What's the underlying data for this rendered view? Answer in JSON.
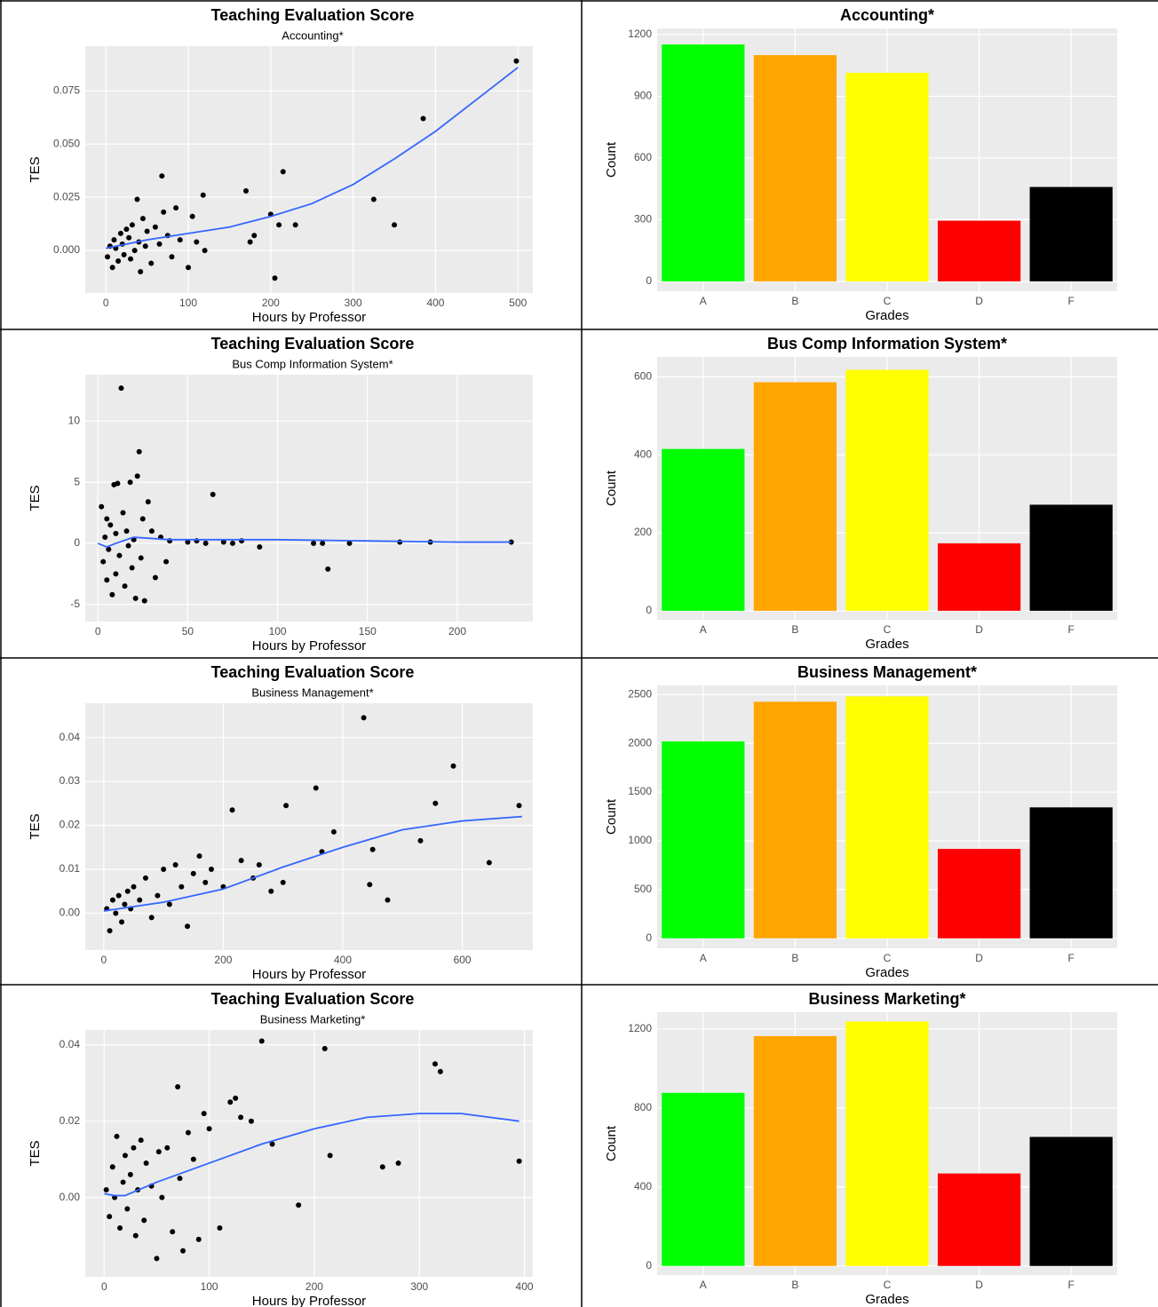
{
  "chart_data": [
    {
      "type": "scatter",
      "title": "Teaching Evaluation Score",
      "subtitle": "Accounting*",
      "x_label": "Hours by Professor",
      "y_label": "TES",
      "xlim": [
        -25,
        518
      ],
      "ylim": [
        -0.02,
        0.096
      ],
      "xticks": [
        0,
        100,
        200,
        300,
        400,
        500
      ],
      "yticks": [
        {
          "value": 0,
          "label": "0.000"
        },
        0.025,
        {
          "value": 0.05,
          "label": "0.050"
        },
        0.075
      ],
      "color": "#000000",
      "fit_color": "#3366ff",
      "x": [
        2,
        5,
        8,
        10,
        12,
        15,
        18,
        20,
        22,
        25,
        28,
        30,
        32,
        35,
        38,
        40,
        42,
        45,
        48,
        50,
        55,
        60,
        65,
        68,
        70,
        75,
        80,
        85,
        90,
        100,
        105,
        110,
        118,
        120,
        170,
        175,
        180,
        200,
        205,
        210,
        215,
        230,
        325,
        350,
        385,
        498
      ],
      "y": [
        -0.003,
        0.002,
        -0.008,
        0.005,
        0.001,
        -0.005,
        0.008,
        0.003,
        -0.002,
        0.01,
        0.006,
        -0.004,
        0.012,
        0.0,
        0.024,
        0.004,
        -0.01,
        0.015,
        0.002,
        0.009,
        -0.006,
        0.011,
        0.003,
        0.035,
        0.018,
        0.007,
        -0.003,
        0.02,
        0.005,
        -0.008,
        0.016,
        0.004,
        0.026,
        0.0,
        0.028,
        0.004,
        0.007,
        0.017,
        -0.013,
        0.012,
        0.037,
        0.012,
        0.024,
        0.012,
        0.062,
        0.089
      ],
      "fit": {
        "x": [
          0,
          50,
          100,
          150,
          200,
          250,
          300,
          350,
          400,
          450,
          500
        ],
        "y": [
          0.001,
          0.005,
          0.008,
          0.011,
          0.016,
          0.022,
          0.031,
          0.043,
          0.056,
          0.071,
          0.086
        ]
      }
    },
    {
      "type": "bar",
      "title": "Accounting*",
      "x_label": "Grades",
      "y_label": "Count",
      "categories": [
        "A",
        "B",
        "C",
        "D",
        "F"
      ],
      "values": [
        1152,
        1100,
        1014,
        295,
        459
      ],
      "colors": [
        "#00ff00",
        "#ffa500",
        "#ffff00",
        "#ff0000",
        "#000000"
      ],
      "ylim": [
        -48,
        1230
      ],
      "yticks": [
        0,
        300,
        600,
        900,
        1200
      ]
    },
    {
      "type": "scatter",
      "title": "Teaching Evaluation Score",
      "subtitle": "Bus Comp Information System*",
      "x_label": "Hours by Professor",
      "y_label": "TES",
      "xlim": [
        -7,
        242
      ],
      "ylim": [
        -6.4,
        13.8
      ],
      "xticks": [
        0,
        50,
        100,
        150,
        200
      ],
      "yticks": [
        -5,
        0,
        5,
        10
      ],
      "color": "#000000",
      "fit_color": "#3366ff",
      "x": [
        2,
        3,
        4,
        5,
        5,
        6,
        7,
        8,
        9,
        10,
        10,
        11,
        12,
        13,
        14,
        15,
        16,
        17,
        18,
        19,
        20,
        21,
        22,
        23,
        24,
        25,
        26,
        28,
        30,
        32,
        35,
        38,
        40,
        50,
        55,
        60,
        64,
        70,
        75,
        80,
        90,
        120,
        125,
        128,
        140,
        168,
        185,
        230
      ],
      "y": [
        3.0,
        -1.5,
        0.5,
        2.0,
        -3.0,
        -0.5,
        1.5,
        -4.2,
        4.8,
        -2.5,
        0.8,
        4.9,
        -1.0,
        12.7,
        2.5,
        -3.5,
        1.0,
        -0.2,
        5.0,
        -2.0,
        0.3,
        -4.5,
        5.5,
        7.5,
        -1.2,
        2.0,
        -4.7,
        3.4,
        1.0,
        -2.8,
        0.5,
        -1.5,
        0.2,
        0.1,
        0.2,
        0.0,
        4.0,
        0.1,
        0.0,
        0.2,
        -0.3,
        0.0,
        0.0,
        -2.1,
        0.0,
        0.1,
        0.1,
        0.1
      ],
      "fit": {
        "x": [
          0,
          5,
          10,
          20,
          40,
          70,
          100,
          150,
          200,
          230
        ],
        "y": [
          0.0,
          -0.3,
          0.0,
          0.5,
          0.3,
          0.3,
          0.3,
          0.2,
          0.1,
          0.1
        ]
      }
    },
    {
      "type": "bar",
      "title": "Bus Comp Information System*",
      "x_label": "Grades",
      "y_label": "Count",
      "categories": [
        "A",
        "B",
        "C",
        "D",
        "F"
      ],
      "values": [
        415,
        586,
        618,
        173,
        272
      ],
      "colors": [
        "#00ff00",
        "#ffa500",
        "#ffff00",
        "#ff0000",
        "#000000"
      ],
      "ylim": [
        -23,
        651
      ],
      "yticks": [
        0,
        200,
        400,
        600
      ]
    },
    {
      "type": "scatter",
      "title": "Teaching Evaluation Score",
      "subtitle": "Business Management*",
      "x_label": "Hours by Professor",
      "y_label": "TES",
      "xlim": [
        -31,
        718
      ],
      "ylim": [
        -0.0084,
        0.0478
      ],
      "xticks": [
        0,
        200,
        400,
        600
      ],
      "yticks": [
        {
          "value": 0,
          "label": "0.00"
        },
        0.01,
        0.02,
        0.03,
        0.04
      ],
      "color": "#000000",
      "fit_color": "#3366ff",
      "x": [
        5,
        10,
        15,
        20,
        25,
        30,
        35,
        40,
        45,
        50,
        60,
        70,
        80,
        90,
        100,
        110,
        120,
        130,
        140,
        150,
        160,
        170,
        180,
        200,
        215,
        230,
        250,
        260,
        280,
        300,
        305,
        355,
        365,
        385,
        435,
        445,
        450,
        475,
        530,
        555,
        585,
        645,
        695
      ],
      "y": [
        0.001,
        -0.004,
        0.003,
        0.0,
        0.004,
        -0.002,
        0.002,
        0.005,
        0.001,
        0.006,
        0.003,
        0.008,
        -0.001,
        0.004,
        0.01,
        0.002,
        0.011,
        0.006,
        -0.003,
        0.009,
        0.013,
        0.007,
        0.01,
        0.006,
        0.0235,
        0.012,
        0.008,
        0.011,
        0.005,
        0.007,
        0.0245,
        0.0285,
        0.014,
        0.0185,
        0.0445,
        0.0065,
        0.0145,
        0.003,
        0.0165,
        0.025,
        0.0335,
        0.0115,
        0.0245
      ],
      "fit": {
        "x": [
          0,
          100,
          200,
          300,
          400,
          500,
          600,
          700
        ],
        "y": [
          0.0005,
          0.0025,
          0.0055,
          0.0105,
          0.015,
          0.019,
          0.021,
          0.022
        ]
      }
    },
    {
      "type": "bar",
      "title": "Business Management*",
      "x_label": "Grades",
      "y_label": "Count",
      "categories": [
        "A",
        "B",
        "C",
        "D",
        "F"
      ],
      "values": [
        2019,
        2426,
        2481,
        917,
        1343
      ],
      "colors": [
        "#00ff00",
        "#ffa500",
        "#ffff00",
        "#ff0000",
        "#000000"
      ],
      "ylim": [
        -102,
        2593
      ],
      "yticks": [
        0,
        500,
        1000,
        1500,
        2000,
        2500
      ]
    },
    {
      "type": "scatter",
      "title": "Teaching Evaluation Score",
      "subtitle": "Business Marketing*",
      "x_label": "Hours by Professor",
      "y_label": "TES",
      "xlim": [
        -18,
        408
      ],
      "ylim": [
        -0.0208,
        0.0439
      ],
      "xticks": [
        0,
        100,
        200,
        300,
        400
      ],
      "yticks": [
        {
          "value": 0,
          "label": "0.00"
        },
        0.02,
        0.04
      ],
      "color": "#000000",
      "fit_color": "#3366ff",
      "x": [
        2,
        5,
        8,
        10,
        12,
        15,
        18,
        20,
        22,
        25,
        28,
        30,
        32,
        35,
        38,
        40,
        45,
        50,
        52,
        55,
        60,
        65,
        70,
        72,
        75,
        80,
        85,
        90,
        95,
        100,
        110,
        120,
        125,
        130,
        140,
        150,
        160,
        185,
        210,
        215,
        265,
        280,
        315,
        320,
        395
      ],
      "y": [
        0.002,
        -0.005,
        0.008,
        0.0,
        0.016,
        -0.008,
        0.004,
        0.011,
        -0.003,
        0.006,
        0.013,
        -0.01,
        0.002,
        0.015,
        -0.006,
        0.009,
        0.003,
        -0.016,
        0.012,
        0.0,
        0.013,
        -0.009,
        0.029,
        0.005,
        -0.014,
        0.017,
        0.01,
        -0.011,
        0.022,
        0.018,
        -0.008,
        0.025,
        0.026,
        0.021,
        0.02,
        0.041,
        0.014,
        -0.002,
        0.039,
        0.011,
        0.008,
        0.009,
        0.035,
        0.033,
        0.0095
      ],
      "fit": {
        "x": [
          0,
          10,
          20,
          50,
          100,
          150,
          200,
          250,
          300,
          340,
          395
        ],
        "y": [
          0.001,
          0.0005,
          0.0005,
          0.004,
          0.009,
          0.014,
          0.018,
          0.021,
          0.022,
          0.022,
          0.02
        ]
      }
    },
    {
      "type": "bar",
      "title": "Business Marketing*",
      "x_label": "Grades",
      "y_label": "Count",
      "categories": [
        "A",
        "B",
        "C",
        "D",
        "F"
      ],
      "values": [
        876,
        1163,
        1237,
        468,
        653
      ],
      "colors": [
        "#00ff00",
        "#ffa500",
        "#ffff00",
        "#ff0000",
        "#000000"
      ],
      "ylim": [
        -46,
        1284
      ],
      "yticks": [
        0,
        400,
        800,
        1200
      ]
    }
  ]
}
